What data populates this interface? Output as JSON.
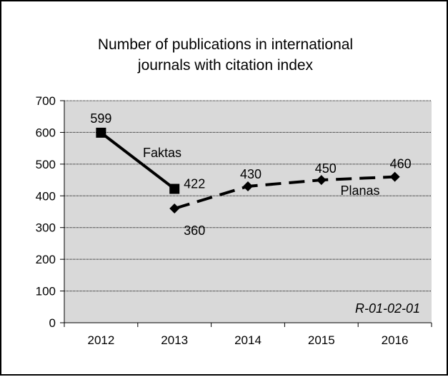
{
  "chart_data": {
    "type": "line",
    "title": [
      "Number of publications in international",
      "journals with citation index"
    ],
    "categories": [
      "2012",
      "2013",
      "2014",
      "2015",
      "2016"
    ],
    "xlabel": "",
    "ylabel": "",
    "ylim": [
      0,
      700
    ],
    "yticks": [
      0,
      100,
      200,
      300,
      400,
      500,
      600,
      700
    ],
    "grid": true,
    "plot_background": "#d9d9d9",
    "series": [
      {
        "name": "Faktas",
        "x": [
          "2012",
          "2013"
        ],
        "values": [
          599,
          422
        ],
        "line_style": "solid",
        "marker": "square",
        "color": "#000000",
        "data_labels": [
          "599",
          "422"
        ]
      },
      {
        "name": "Planas",
        "x": [
          "2013",
          "2014",
          "2015",
          "2016"
        ],
        "values": [
          360,
          430,
          450,
          460
        ],
        "line_style": "dashed",
        "marker": "diamond",
        "color": "#000000",
        "data_labels": [
          "360",
          "430",
          "450",
          "460"
        ]
      }
    ],
    "annotations": [
      "R-01-02-01"
    ]
  }
}
